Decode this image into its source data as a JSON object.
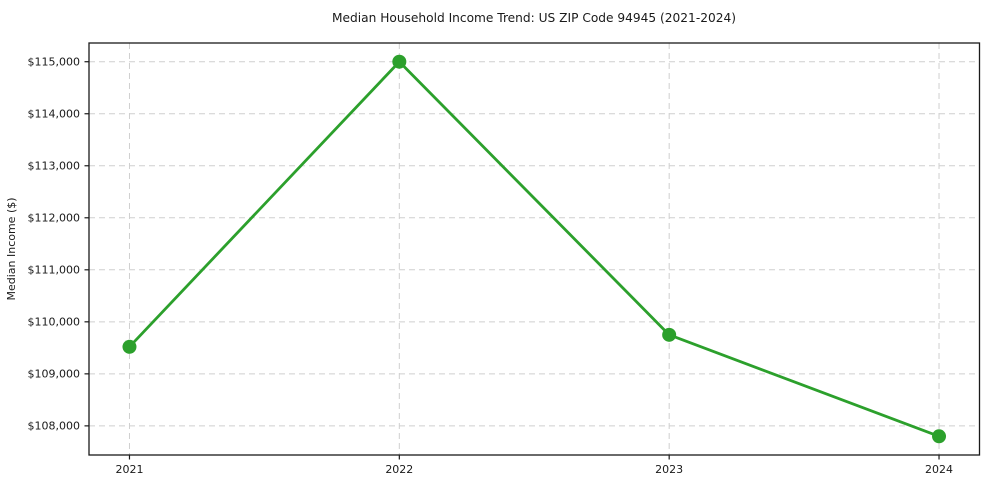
{
  "chart_data": {
    "type": "line",
    "title": "Median Household Income Trend: US ZIP Code 94945 (2021-2024)",
    "xlabel": "",
    "ylabel": "Median Income ($)",
    "x": [
      2021,
      2022,
      2023,
      2024
    ],
    "values": [
      109520,
      115000,
      109750,
      107800
    ],
    "x_tick_labels": [
      "2021",
      "2022",
      "2023",
      "2024"
    ],
    "y_ticks": [
      108000,
      109000,
      110000,
      111000,
      112000,
      113000,
      114000,
      115000
    ],
    "y_tick_labels": [
      "$108,000",
      "$109,000",
      "$110,000",
      "$111,000",
      "$112,000",
      "$113,000",
      "$114,000",
      "$115,000"
    ],
    "xlim": [
      2020.85,
      2024.15
    ],
    "ylim": [
      107440,
      115360
    ],
    "grid": true,
    "grid_style": "dashed",
    "legend_position": "none",
    "marker": "circle",
    "colors": {
      "line": "#2ca02c",
      "marker": "#2ca02c",
      "grid": "#cfcfcf",
      "spine": "#1a1a1a",
      "text": "#1a1a1a",
      "background": "#ffffff"
    }
  }
}
